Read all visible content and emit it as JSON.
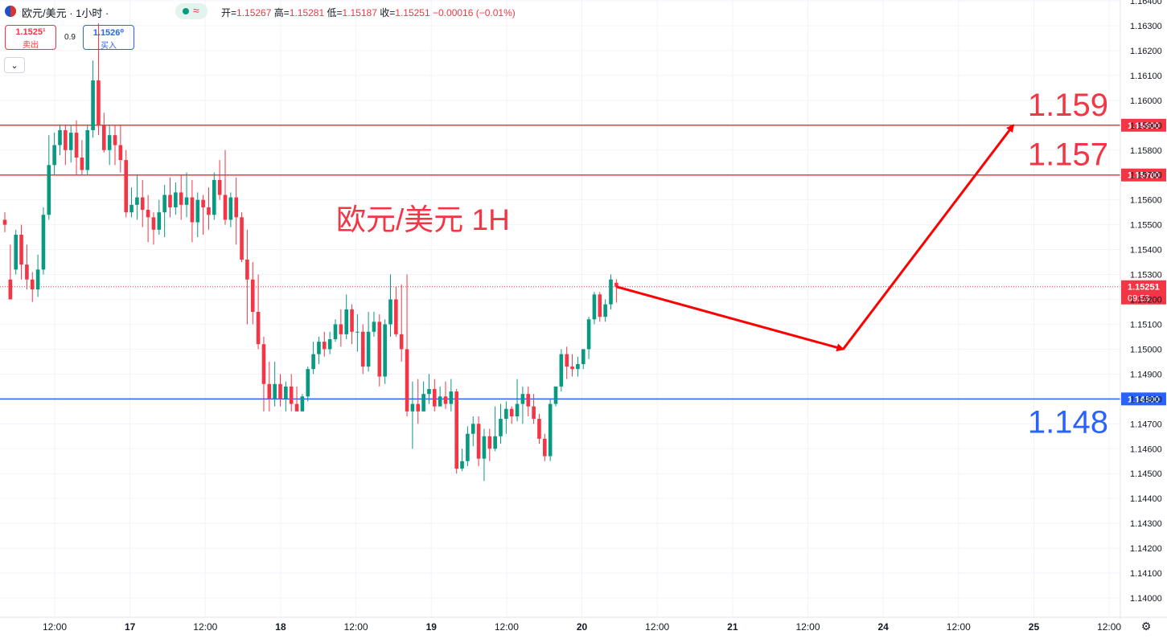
{
  "header": {
    "symbol_title": "欧元/美元 · 1小时 ·",
    "wave_icon": "≈",
    "ohlc_text_open_label": "开=",
    "open": "1.15267",
    "high_label": "高=",
    "high": "1.15281",
    "low_label": "低=",
    "low": "1.15187",
    "close_label": "收=",
    "close": "1.15251",
    "change": "−0.00016 (−0.01%)"
  },
  "trade": {
    "sell_price": "1.1525¹",
    "sell_label": "卖出",
    "spread": "0.9",
    "buy_price": "1.1526⁰",
    "buy_label": "买入"
  },
  "chevron": "⌄",
  "settings_icon": "⚙",
  "annotation": {
    "title": "欧元/美元 1H"
  },
  "colors": {
    "up": "#089981",
    "down": "#f23645",
    "blue": "#2962ff",
    "grid": "#f0f3fa",
    "text": "#131722"
  },
  "chart_data": {
    "type": "candlestick",
    "title": "欧元/美元 1H",
    "y_range": [
      1.1397,
      1.1643
    ],
    "y_ticks": [
      "1.16400",
      "1.16300",
      "1.16200",
      "1.16100",
      "1.16000",
      "1.15900",
      "1.15800",
      "1.15700",
      "1.15600",
      "1.15500",
      "1.15400",
      "1.15300",
      "1.15200",
      "1.15100",
      "1.15000",
      "1.14900",
      "1.14800",
      "1.14700",
      "1.14600",
      "1.14500",
      "1.14400",
      "1.14300",
      "1.14200",
      "1.14100",
      "1.14000"
    ],
    "x_labels": [
      "12:00",
      "17",
      "12:00",
      "18",
      "12:00",
      "19",
      "12:00",
      "20",
      "12:00",
      "21",
      "12:00",
      "24",
      "12:00",
      "25",
      "12:00"
    ],
    "horizontal_levels": [
      {
        "price": 1.159,
        "label": "1.15900",
        "big_label": "1.159",
        "color": "#f23645"
      },
      {
        "price": 1.157,
        "label": "1.15700",
        "big_label": "1.157",
        "color": "#f23645"
      },
      {
        "price": 1.148,
        "label": "1.14800",
        "big_label": "1.148",
        "color": "#2962ff"
      }
    ],
    "current_price": {
      "price": 1.15251,
      "label": "1.15251",
      "countdown": "09:53"
    },
    "projection_path": [
      [
        1.15251,
        0
      ],
      [
        1.15,
        12
      ],
      [
        1.159,
        21
      ]
    ],
    "candles": [
      [
        1.1552,
        1.155,
        1.1555,
        1.1547
      ],
      [
        1.1528,
        1.152,
        1.1542,
        1.152
      ],
      [
        1.1532,
        1.1546,
        1.1548,
        1.153
      ],
      [
        1.1546,
        1.1534,
        1.155,
        1.1528
      ],
      [
        1.1534,
        1.1528,
        1.1542,
        1.1524
      ],
      [
        1.1528,
        1.1524,
        1.1531,
        1.1519
      ],
      [
        1.1524,
        1.1532,
        1.1538,
        1.1521
      ],
      [
        1.1532,
        1.1554,
        1.1557,
        1.153
      ],
      [
        1.1554,
        1.1574,
        1.1586,
        1.1552
      ],
      [
        1.1574,
        1.1582,
        1.1587,
        1.157
      ],
      [
        1.1582,
        1.1588,
        1.159,
        1.1578
      ],
      [
        1.1588,
        1.158,
        1.159,
        1.1574
      ],
      [
        1.158,
        1.1587,
        1.159,
        1.1575
      ],
      [
        1.1587,
        1.1577,
        1.1592,
        1.157
      ],
      [
        1.1577,
        1.1572,
        1.1584,
        1.157
      ],
      [
        1.1572,
        1.1588,
        1.159,
        1.157
      ],
      [
        1.1588,
        1.1608,
        1.1616,
        1.1585
      ],
      [
        1.1608,
        1.159,
        1.1631,
        1.1586
      ],
      [
        1.159,
        1.158,
        1.1595,
        1.1579
      ],
      [
        1.158,
        1.1586,
        1.159,
        1.1574
      ],
      [
        1.1586,
        1.1582,
        1.159,
        1.1574
      ],
      [
        1.1582,
        1.1576,
        1.159,
        1.1571
      ],
      [
        1.1576,
        1.1555,
        1.158,
        1.1553
      ],
      [
        1.1555,
        1.1558,
        1.1565,
        1.1553
      ],
      [
        1.1558,
        1.1561,
        1.157,
        1.1552
      ],
      [
        1.1561,
        1.1556,
        1.1568,
        1.1549
      ],
      [
        1.1556,
        1.1553,
        1.1562,
        1.1543
      ],
      [
        1.1553,
        1.1548,
        1.1555,
        1.1542
      ],
      [
        1.1548,
        1.1555,
        1.156,
        1.1546
      ],
      [
        1.1555,
        1.1562,
        1.1566,
        1.1545
      ],
      [
        1.1562,
        1.1557,
        1.1569,
        1.1553
      ],
      [
        1.1557,
        1.1563,
        1.1567,
        1.1554
      ],
      [
        1.1563,
        1.1558,
        1.157,
        1.1552
      ],
      [
        1.1558,
        1.1561,
        1.1571,
        1.1553
      ],
      [
        1.1561,
        1.1551,
        1.1568,
        1.1543
      ],
      [
        1.1551,
        1.156,
        1.1563,
        1.1545
      ],
      [
        1.156,
        1.1557,
        1.1562,
        1.1546
      ],
      [
        1.1557,
        1.1554,
        1.1565,
        1.1548
      ],
      [
        1.1554,
        1.1568,
        1.1571,
        1.1552
      ],
      [
        1.1568,
        1.1562,
        1.1576,
        1.156
      ],
      [
        1.1562,
        1.1552,
        1.158,
        1.155
      ],
      [
        1.1552,
        1.1561,
        1.1563,
        1.1549
      ],
      [
        1.1561,
        1.1553,
        1.1569,
        1.1542
      ],
      [
        1.1553,
        1.1536,
        1.1555,
        1.1535
      ],
      [
        1.1536,
        1.1528,
        1.1548,
        1.151
      ],
      [
        1.1528,
        1.1515,
        1.1535,
        1.151
      ],
      [
        1.1515,
        1.1502,
        1.153,
        1.15
      ],
      [
        1.1502,
        1.1486,
        1.1505,
        1.1475
      ],
      [
        1.1486,
        1.148,
        1.1495,
        1.1475
      ],
      [
        1.148,
        1.1486,
        1.1495,
        1.1477
      ],
      [
        1.1486,
        1.148,
        1.149,
        1.1477
      ],
      [
        1.148,
        1.1485,
        1.1487,
        1.1475
      ],
      [
        1.1485,
        1.1478,
        1.149,
        1.1475
      ],
      [
        1.1478,
        1.1475,
        1.1485,
        1.1475
      ],
      [
        1.1475,
        1.1481,
        1.1482,
        1.1475
      ],
      [
        1.1481,
        1.1492,
        1.1493,
        1.1479
      ],
      [
        1.1492,
        1.1498,
        1.1503,
        1.149
      ],
      [
        1.1498,
        1.1503,
        1.1505,
        1.1494
      ],
      [
        1.1503,
        1.15,
        1.1507,
        1.1497
      ],
      [
        1.15,
        1.1504,
        1.1507,
        1.1498
      ],
      [
        1.1504,
        1.151,
        1.1512,
        1.1503
      ],
      [
        1.151,
        1.1506,
        1.1516,
        1.1501
      ],
      [
        1.1506,
        1.1516,
        1.1522,
        1.1504
      ],
      [
        1.1516,
        1.1507,
        1.1518,
        1.1502
      ],
      [
        1.1507,
        1.1507,
        1.1514,
        1.1499
      ],
      [
        1.1507,
        1.1493,
        1.151,
        1.149
      ],
      [
        1.1493,
        1.1507,
        1.1515,
        1.1491
      ],
      [
        1.1507,
        1.1511,
        1.1515,
        1.1505
      ],
      [
        1.1511,
        1.1489,
        1.1514,
        1.1485
      ],
      [
        1.1489,
        1.151,
        1.1512,
        1.1486
      ],
      [
        1.151,
        1.152,
        1.153,
        1.1505
      ],
      [
        1.152,
        1.1506,
        1.1525,
        1.1505
      ],
      [
        1.1506,
        1.15,
        1.1526,
        1.1495
      ],
      [
        1.15,
        1.1475,
        1.153,
        1.1473
      ],
      [
        1.1475,
        1.1478,
        1.1487,
        1.146
      ],
      [
        1.1478,
        1.1475,
        1.1488,
        1.147
      ],
      [
        1.1475,
        1.1482,
        1.1487,
        1.1475
      ],
      [
        1.1482,
        1.1484,
        1.149,
        1.1478
      ],
      [
        1.1484,
        1.1477,
        1.1488,
        1.1475
      ],
      [
        1.1477,
        1.1481,
        1.1485,
        1.1477
      ],
      [
        1.1481,
        1.1478,
        1.1487,
        1.1476
      ],
      [
        1.1478,
        1.1483,
        1.1488,
        1.1475
      ],
      [
        1.1483,
        1.1452,
        1.1484,
        1.145
      ],
      [
        1.1452,
        1.1455,
        1.146,
        1.1451
      ],
      [
        1.1455,
        1.1466,
        1.1469,
        1.1453
      ],
      [
        1.1466,
        1.147,
        1.1473,
        1.1461
      ],
      [
        1.147,
        1.1456,
        1.1473,
        1.1453
      ],
      [
        1.1456,
        1.1465,
        1.1468,
        1.1447
      ],
      [
        1.1465,
        1.146,
        1.1468,
        1.1455
      ],
      [
        1.146,
        1.1465,
        1.1477,
        1.1459
      ],
      [
        1.1465,
        1.1472,
        1.1478,
        1.1462
      ],
      [
        1.1472,
        1.1476,
        1.1479,
        1.1466
      ],
      [
        1.1476,
        1.1473,
        1.1477,
        1.147
      ],
      [
        1.1473,
        1.1478,
        1.1488,
        1.1471
      ],
      [
        1.1478,
        1.1482,
        1.1485,
        1.147
      ],
      [
        1.1482,
        1.1477,
        1.1485,
        1.1473
      ],
      [
        1.1477,
        1.1472,
        1.1482,
        1.147
      ],
      [
        1.1472,
        1.1464,
        1.1474,
        1.1462
      ],
      [
        1.1464,
        1.1457,
        1.1466,
        1.1455
      ],
      [
        1.1457,
        1.1478,
        1.148,
        1.1455
      ],
      [
        1.1478,
        1.1485,
        1.1485,
        1.1477
      ],
      [
        1.1485,
        1.1498,
        1.15,
        1.1483
      ],
      [
        1.1498,
        1.1493,
        1.1501,
        1.1488
      ],
      [
        1.1493,
        1.1492,
        1.1498,
        1.1489
      ],
      [
        1.1492,
        1.1494,
        1.1497,
        1.1489
      ],
      [
        1.1494,
        1.15,
        1.15,
        1.1492
      ],
      [
        1.15,
        1.1512,
        1.1513,
        1.1496
      ],
      [
        1.1512,
        1.1522,
        1.1523,
        1.151
      ],
      [
        1.1522,
        1.1513,
        1.1523,
        1.1511
      ],
      [
        1.1513,
        1.1518,
        1.152,
        1.1511
      ],
      [
        1.1518,
        1.1528,
        1.153,
        1.1516
      ],
      [
        1.15267,
        1.15251,
        1.15281,
        1.15187
      ]
    ]
  }
}
